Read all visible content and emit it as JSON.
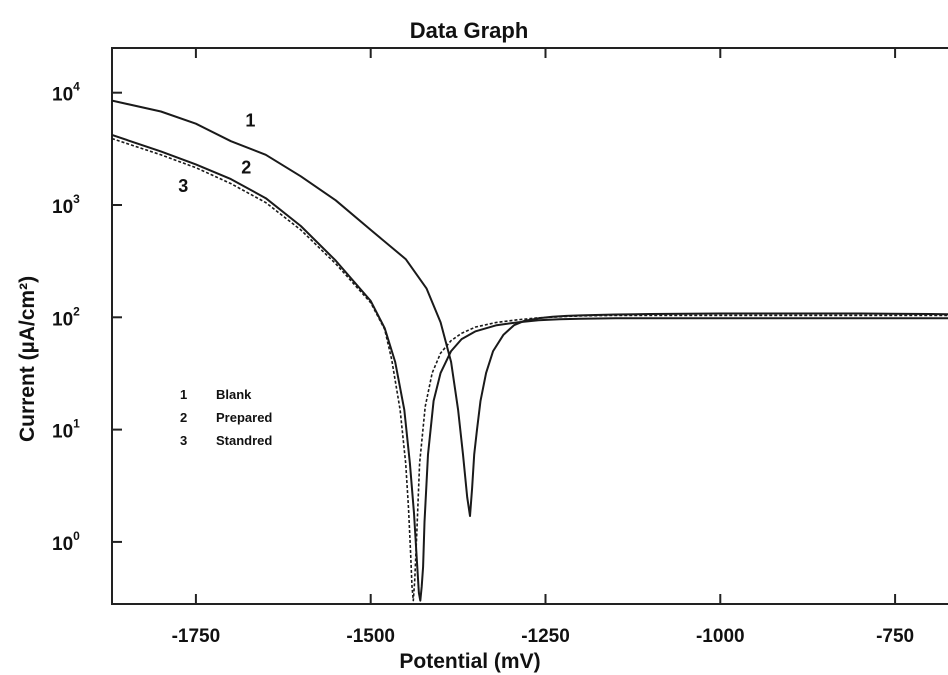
{
  "chart_data": {
    "type": "line",
    "title": "Data Graph",
    "xlabel": "Potential (mV)",
    "ylabel": "Current (µA/cm²)",
    "y_scale": "log",
    "xlim": [
      -1870,
      -640
    ],
    "ylim": [
      0.28,
      25000
    ],
    "x_ticks": [
      -1750,
      -1500,
      -1250,
      -1000,
      -750
    ],
    "x_tick_labels": [
      "-1750",
      "-1500",
      "-1250",
      "-1000",
      "-750"
    ],
    "y_ticks": [
      1,
      10,
      100,
      1000,
      10000
    ],
    "y_tick_labels": [
      {
        "base": "10",
        "exp": "0"
      },
      {
        "base": "10",
        "exp": "1"
      },
      {
        "base": "10",
        "exp": "2"
      },
      {
        "base": "10",
        "exp": "3"
      },
      {
        "base": "10",
        "exp": "4"
      }
    ],
    "grid": false,
    "legend_position": "left-middle",
    "legend": [
      {
        "number": "1",
        "label": "Blank"
      },
      {
        "number": "2",
        "label": "Prepared"
      },
      {
        "number": "3",
        "label": "Standred"
      }
    ],
    "curve_labels": [
      {
        "text": "1",
        "x": -1672,
        "y": 5000
      },
      {
        "text": "2",
        "x": -1678,
        "y": 1900
      },
      {
        "text": "3",
        "x": -1768,
        "y": 1300
      }
    ],
    "series": [
      {
        "name": "1",
        "style": "solid",
        "x": [
          -1870,
          -1800,
          -1750,
          -1700,
          -1650,
          -1600,
          -1550,
          -1500,
          -1450,
          -1420,
          -1400,
          -1385,
          -1375,
          -1368,
          -1362,
          -1358,
          -1355,
          -1352,
          -1348,
          -1343,
          -1335,
          -1325,
          -1310,
          -1295,
          -1280,
          -1260,
          -1240,
          -1220,
          -1200,
          -1150,
          -1100,
          -1000,
          -900,
          -800,
          -700,
          -640
        ],
        "y": [
          8500,
          6800,
          5300,
          3700,
          2800,
          1800,
          1100,
          600,
          330,
          180,
          90,
          40,
          15,
          6,
          2.5,
          1.7,
          3,
          6,
          10,
          18,
          32,
          50,
          70,
          85,
          93,
          98,
          101,
          103,
          104,
          106,
          107,
          108,
          108,
          108,
          107,
          106
        ]
      },
      {
        "name": "2",
        "style": "solid",
        "x": [
          -1870,
          -1800,
          -1750,
          -1700,
          -1650,
          -1600,
          -1550,
          -1500,
          -1480,
          -1465,
          -1452,
          -1444,
          -1438,
          -1434,
          -1431,
          -1429,
          -1427,
          -1425,
          -1423,
          -1418,
          -1410,
          -1400,
          -1385,
          -1370,
          -1350,
          -1320,
          -1290,
          -1260,
          -1230,
          -1200,
          -1150,
          -1100,
          -1000,
          -900,
          -800,
          -700,
          -640
        ],
        "y": [
          4200,
          3000,
          2300,
          1700,
          1150,
          650,
          320,
          140,
          80,
          40,
          15,
          5,
          1.8,
          0.7,
          0.35,
          0.3,
          0.4,
          0.6,
          1.5,
          6,
          18,
          32,
          50,
          64,
          75,
          85,
          90,
          94,
          96,
          97,
          98,
          98,
          98,
          98,
          98,
          98,
          98
        ]
      },
      {
        "name": "3",
        "style": "dashed",
        "x": [
          -1870,
          -1800,
          -1750,
          -1700,
          -1650,
          -1600,
          -1550,
          -1500,
          -1480,
          -1470,
          -1458,
          -1450,
          -1446,
          -1443,
          -1441,
          -1439,
          -1437,
          -1434,
          -1430,
          -1422,
          -1412,
          -1400,
          -1385,
          -1370,
          -1350,
          -1320,
          -1290,
          -1260,
          -1230,
          -1200,
          -1150,
          -1100,
          -1000,
          -900,
          -800,
          -700,
          -640
        ],
        "y": [
          3900,
          2800,
          2150,
          1550,
          1050,
          600,
          300,
          135,
          78,
          42,
          15,
          5,
          2,
          0.8,
          0.4,
          0.3,
          0.45,
          1.2,
          5,
          16,
          32,
          48,
          62,
          72,
          82,
          90,
          95,
          99,
          101,
          103,
          104,
          104,
          104,
          104,
          104,
          104,
          104
        ]
      }
    ]
  }
}
